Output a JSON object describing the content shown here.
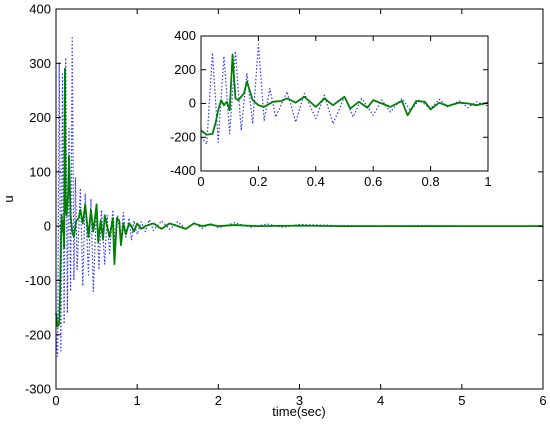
{
  "chart_data": [
    {
      "type": "line",
      "title": "",
      "xlabel": "time(sec)",
      "ylabel": "u",
      "xlim": [
        0,
        6
      ],
      "ylim": [
        -300,
        400
      ],
      "xticks": [
        0,
        1,
        2,
        3,
        4,
        5,
        6
      ],
      "xtick_labels": [
        "0",
        "1",
        "2",
        "3",
        "4",
        "5",
        "6"
      ],
      "yticks": [
        -300,
        -200,
        -100,
        0,
        100,
        200,
        300,
        400
      ],
      "ytick_labels": [
        "-300",
        "-200",
        "-100",
        "0",
        "100",
        "200",
        "300",
        "400"
      ],
      "grid": false,
      "colors": {
        "solid": "#007f00",
        "dotted": "#3333ff"
      },
      "series": [
        {
          "style": "solid",
          "x": [
            0,
            0.02,
            0.04,
            0.05,
            0.06,
            0.07,
            0.08,
            0.09,
            0.1,
            0.11,
            0.12,
            0.13,
            0.15,
            0.16,
            0.18,
            0.2,
            0.22,
            0.25,
            0.28,
            0.3,
            0.33,
            0.36,
            0.4,
            0.43,
            0.46,
            0.5,
            0.52,
            0.55,
            0.58,
            0.6,
            0.63,
            0.66,
            0.7,
            0.72,
            0.75,
            0.78,
            0.8,
            0.83,
            0.86,
            0.9,
            0.93,
            0.96,
            1.0,
            1.05,
            1.1,
            1.2,
            1.3,
            1.4,
            1.5,
            1.6,
            1.7,
            1.8,
            1.9,
            2.0,
            2.2,
            2.5,
            3.0,
            3.5,
            4.0,
            4.5,
            5.0,
            5.5,
            6.0
          ],
          "y": [
            -160,
            -185,
            -180,
            -120,
            -40,
            20,
            -10,
            10,
            -40,
            290,
            30,
            20,
            60,
            130,
            20,
            -10,
            -20,
            10,
            15,
            30,
            5,
            40,
            -20,
            30,
            -10,
            40,
            -30,
            10,
            -25,
            20,
            0,
            -20,
            15,
            -70,
            15,
            10,
            -35,
            5,
            -15,
            5,
            0,
            -10,
            5,
            -5,
            0,
            5,
            -5,
            5,
            0,
            -5,
            5,
            0,
            3,
            0,
            2,
            0,
            1,
            0,
            0,
            0,
            0,
            0,
            0
          ]
        },
        {
          "style": "dotted",
          "x": [
            0,
            0.02,
            0.04,
            0.06,
            0.08,
            0.1,
            0.12,
            0.14,
            0.16,
            0.18,
            0.2,
            0.22,
            0.24,
            0.26,
            0.3,
            0.33,
            0.36,
            0.4,
            0.43,
            0.46,
            0.5,
            0.53,
            0.56,
            0.6,
            0.63,
            0.66,
            0.7,
            0.73,
            0.76,
            0.8,
            0.83,
            0.86,
            0.9,
            0.93,
            0.96,
            1.0,
            1.05,
            1.1,
            1.15,
            1.2,
            1.3,
            1.4,
            1.5,
            1.6,
            1.7,
            1.8,
            1.9,
            2.0,
            2.2,
            2.4,
            2.6,
            2.8,
            3.0,
            3.5,
            4.0,
            4.5,
            5.0,
            5.5,
            6.0
          ],
          "y": [
            -200,
            -240,
            300,
            -230,
            280,
            -180,
            310,
            -160,
            180,
            -120,
            350,
            -100,
            90,
            -80,
            70,
            -110,
            60,
            -90,
            50,
            -120,
            40,
            -80,
            30,
            -70,
            20,
            -50,
            30,
            -40,
            20,
            -30,
            25,
            -20,
            15,
            -25,
            10,
            -15,
            8,
            -10,
            12,
            -8,
            10,
            -6,
            8,
            -5,
            6,
            -4,
            5,
            -3,
            6,
            -2,
            4,
            -2,
            3,
            1,
            0,
            1,
            0,
            0,
            0
          ]
        }
      ]
    },
    {
      "type": "line",
      "title": "",
      "xlabel": "",
      "ylabel": "",
      "xlim": [
        0,
        1
      ],
      "ylim": [
        -400,
        400
      ],
      "xticks": [
        0,
        0.2,
        0.4,
        0.6,
        0.8,
        1
      ],
      "xtick_labels": [
        "0",
        "0.2",
        "0.4",
        "0.6",
        "0.8",
        "1"
      ],
      "yticks": [
        -400,
        -200,
        0,
        200,
        400
      ],
      "ytick_labels": [
        "-400",
        "-200",
        "0",
        "200",
        "400"
      ],
      "grid": false,
      "colors": {
        "solid": "#007f00",
        "dotted": "#3333ff"
      },
      "series": [
        {
          "style": "solid",
          "x": [
            0,
            0.02,
            0.04,
            0.05,
            0.06,
            0.07,
            0.08,
            0.09,
            0.1,
            0.11,
            0.12,
            0.13,
            0.15,
            0.16,
            0.18,
            0.2,
            0.22,
            0.25,
            0.28,
            0.3,
            0.33,
            0.36,
            0.4,
            0.43,
            0.46,
            0.5,
            0.52,
            0.55,
            0.58,
            0.6,
            0.63,
            0.66,
            0.7,
            0.72,
            0.75,
            0.78,
            0.8,
            0.83,
            0.86,
            0.9,
            0.93,
            0.96,
            1.0
          ],
          "y": [
            -160,
            -185,
            -180,
            -120,
            -40,
            20,
            -10,
            10,
            -40,
            290,
            30,
            20,
            60,
            130,
            20,
            -10,
            -20,
            10,
            15,
            30,
            5,
            40,
            -20,
            30,
            -10,
            40,
            -30,
            10,
            -25,
            20,
            0,
            -20,
            15,
            -70,
            15,
            10,
            -35,
            5,
            -15,
            5,
            0,
            -10,
            5
          ]
        },
        {
          "style": "dotted",
          "x": [
            0,
            0.02,
            0.04,
            0.06,
            0.08,
            0.1,
            0.12,
            0.14,
            0.16,
            0.18,
            0.2,
            0.22,
            0.24,
            0.26,
            0.3,
            0.33,
            0.36,
            0.4,
            0.43,
            0.46,
            0.5,
            0.53,
            0.56,
            0.6,
            0.63,
            0.66,
            0.7,
            0.73,
            0.76,
            0.8,
            0.83,
            0.86,
            0.9,
            0.93,
            0.96,
            1.0
          ],
          "y": [
            -200,
            -240,
            300,
            -230,
            280,
            -180,
            310,
            -160,
            180,
            -120,
            350,
            -100,
            90,
            -80,
            70,
            -110,
            60,
            -90,
            50,
            -120,
            40,
            -80,
            30,
            -70,
            20,
            -50,
            30,
            -40,
            20,
            -30,
            25,
            -20,
            15,
            -25,
            10,
            -15
          ]
        }
      ]
    }
  ]
}
